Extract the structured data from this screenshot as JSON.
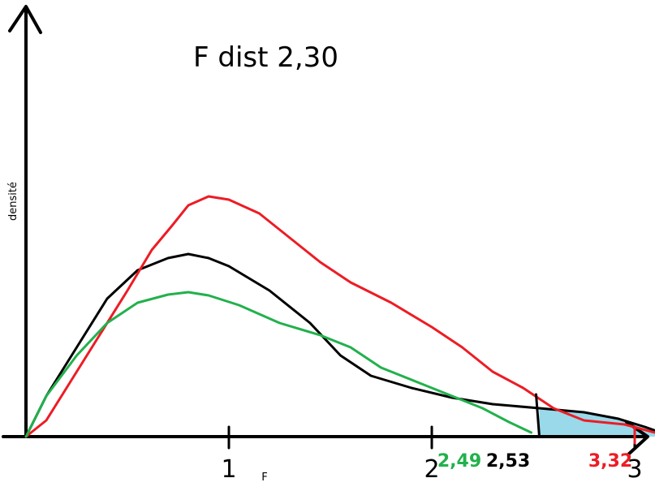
{
  "chart_data": {
    "type": "line",
    "title": "F dist 2,30",
    "xlabel": "F",
    "ylabel": "densité",
    "xlim": [
      0,
      3.15
    ],
    "ylim": [
      0,
      0.31
    ],
    "x_ticks": [
      {
        "value": 1,
        "label": "1"
      },
      {
        "value": 2,
        "label": "2"
      },
      {
        "value": 3,
        "label": "3"
      }
    ],
    "shaded_region": {
      "from": 2.53,
      "to": 3.15,
      "series": "black",
      "color": "#99d9ea"
    },
    "critical_values": [
      {
        "value": 2.49,
        "label": "2,49",
        "color": "#22b14c"
      },
      {
        "value": 2.53,
        "label": "2,53",
        "color": "#000000"
      },
      {
        "value": 3.32,
        "label": "3,32",
        "color": "#ed1c24"
      }
    ],
    "series": [
      {
        "color": "#000000",
        "points": [
          [
            0.0,
            0.0
          ],
          [
            0.1,
            0.05
          ],
          [
            0.25,
            0.11
          ],
          [
            0.4,
            0.17
          ],
          [
            0.55,
            0.205
          ],
          [
            0.7,
            0.22
          ],
          [
            0.8,
            0.225
          ],
          [
            0.9,
            0.22
          ],
          [
            1.0,
            0.21
          ],
          [
            1.2,
            0.18
          ],
          [
            1.4,
            0.14
          ],
          [
            1.55,
            0.1
          ],
          [
            1.7,
            0.075
          ],
          [
            1.9,
            0.06
          ],
          [
            2.1,
            0.048
          ],
          [
            2.3,
            0.04
          ],
          [
            2.53,
            0.035
          ],
          [
            2.75,
            0.03
          ],
          [
            2.92,
            0.022
          ],
          [
            3.05,
            0.012
          ],
          [
            3.15,
            0.003
          ]
        ]
      },
      {
        "color": "#ed1c24",
        "points": [
          [
            0.0,
            0.0
          ],
          [
            0.1,
            0.02
          ],
          [
            0.2,
            0.06
          ],
          [
            0.35,
            0.12
          ],
          [
            0.5,
            0.18
          ],
          [
            0.62,
            0.23
          ],
          [
            0.72,
            0.26
          ],
          [
            0.8,
            0.285
          ],
          [
            0.9,
            0.296
          ],
          [
            1.0,
            0.292
          ],
          [
            1.15,
            0.275
          ],
          [
            1.3,
            0.245
          ],
          [
            1.45,
            0.215
          ],
          [
            1.6,
            0.19
          ],
          [
            1.8,
            0.165
          ],
          [
            2.0,
            0.135
          ],
          [
            2.15,
            0.11
          ],
          [
            2.3,
            0.08
          ],
          [
            2.45,
            0.06
          ],
          [
            2.6,
            0.035
          ],
          [
            2.75,
            0.02
          ],
          [
            2.95,
            0.015
          ],
          [
            3.1,
            0.005
          ],
          [
            3.2,
            0.0
          ]
        ]
      },
      {
        "color": "#22b14c",
        "points": [
          [
            0.0,
            0.0
          ],
          [
            0.1,
            0.05
          ],
          [
            0.25,
            0.1
          ],
          [
            0.4,
            0.14
          ],
          [
            0.55,
            0.165
          ],
          [
            0.7,
            0.175
          ],
          [
            0.8,
            0.178
          ],
          [
            0.9,
            0.174
          ],
          [
            1.05,
            0.162
          ],
          [
            1.25,
            0.14
          ],
          [
            1.45,
            0.125
          ],
          [
            1.6,
            0.11
          ],
          [
            1.75,
            0.085
          ],
          [
            1.95,
            0.065
          ],
          [
            2.1,
            0.05
          ],
          [
            2.25,
            0.035
          ],
          [
            2.38,
            0.018
          ],
          [
            2.49,
            0.005
          ]
        ]
      }
    ]
  }
}
